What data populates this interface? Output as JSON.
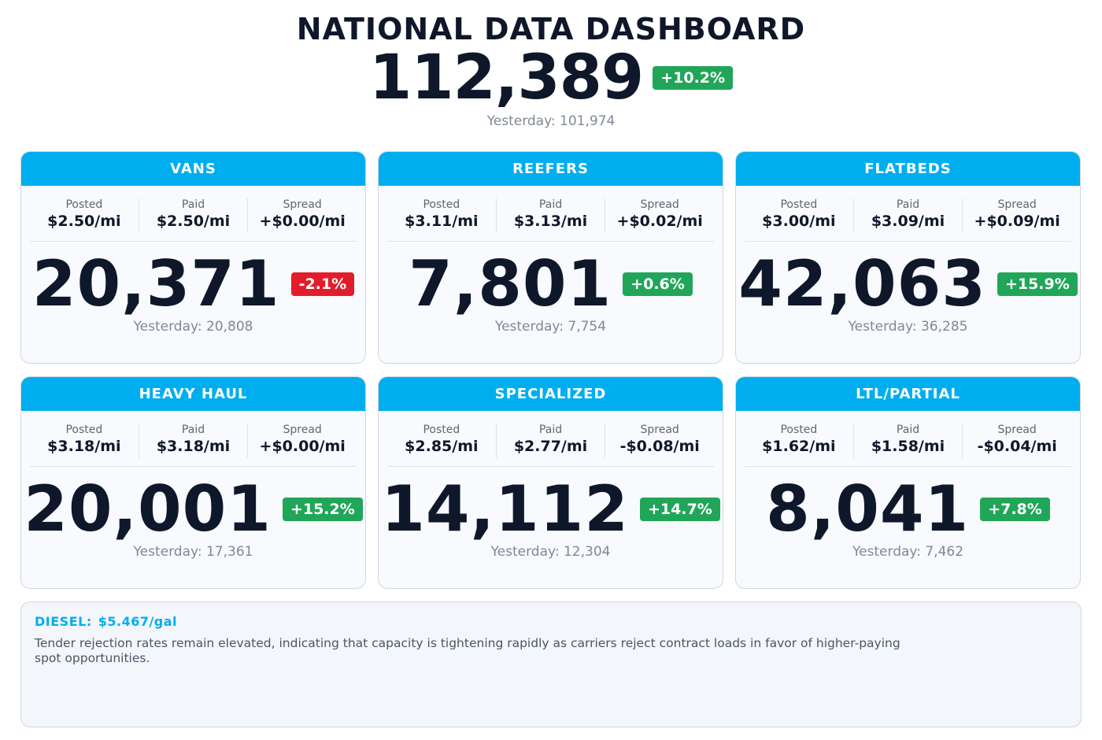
{
  "header": {
    "title": "NATIONAL DATA DASHBOARD",
    "total": "112,389",
    "change": "+10.2%",
    "change_dir": "up",
    "yesterday": "Yesterday: 101,974"
  },
  "labels": {
    "posted": "Posted",
    "paid": "Paid",
    "spread": "Spread"
  },
  "cards": [
    {
      "name": "VANS",
      "posted": "$2.50/mi",
      "paid": "$2.50/mi",
      "spread": "+$0.00/mi",
      "count": "20,371",
      "change": "-2.1%",
      "change_dir": "down",
      "yesterday": "Yesterday: 20,808"
    },
    {
      "name": "REEFERS",
      "posted": "$3.11/mi",
      "paid": "$3.13/mi",
      "spread": "+$0.02/mi",
      "count": "7,801",
      "change": "+0.6%",
      "change_dir": "up",
      "yesterday": "Yesterday: 7,754"
    },
    {
      "name": "FLATBEDS",
      "posted": "$3.00/mi",
      "paid": "$3.09/mi",
      "spread": "+$0.09/mi",
      "count": "42,063",
      "change": "+15.9%",
      "change_dir": "up",
      "yesterday": "Yesterday: 36,285"
    },
    {
      "name": "HEAVY HAUL",
      "posted": "$3.18/mi",
      "paid": "$3.18/mi",
      "spread": "+$0.00/mi",
      "count": "20,001",
      "change": "+15.2%",
      "change_dir": "up",
      "yesterday": "Yesterday: 17,361"
    },
    {
      "name": "SPECIALIZED",
      "posted": "$2.85/mi",
      "paid": "$2.77/mi",
      "spread": "-$0.08/mi",
      "count": "14,112",
      "change": "+14.7%",
      "change_dir": "up",
      "yesterday": "Yesterday: 12,304"
    },
    {
      "name": "LTL/PARTIAL",
      "posted": "$1.62/mi",
      "paid": "$1.58/mi",
      "spread": "-$0.04/mi",
      "count": "8,041",
      "change": "+7.8%",
      "change_dir": "up",
      "yesterday": "Yesterday: 7,462"
    }
  ],
  "footer": {
    "diesel_label": "DIESEL:",
    "diesel_value": "$5.467/gal",
    "commentary": "Tender rejection rates remain elevated, indicating that capacity is tightening rapidly as carriers reject contract loads in favor of higher-paying spot opportunities."
  },
  "colors": {
    "accent": "#00aeef",
    "up": "#21a659",
    "down": "#e11d2c",
    "text": "#0f172a",
    "muted": "#808896"
  }
}
